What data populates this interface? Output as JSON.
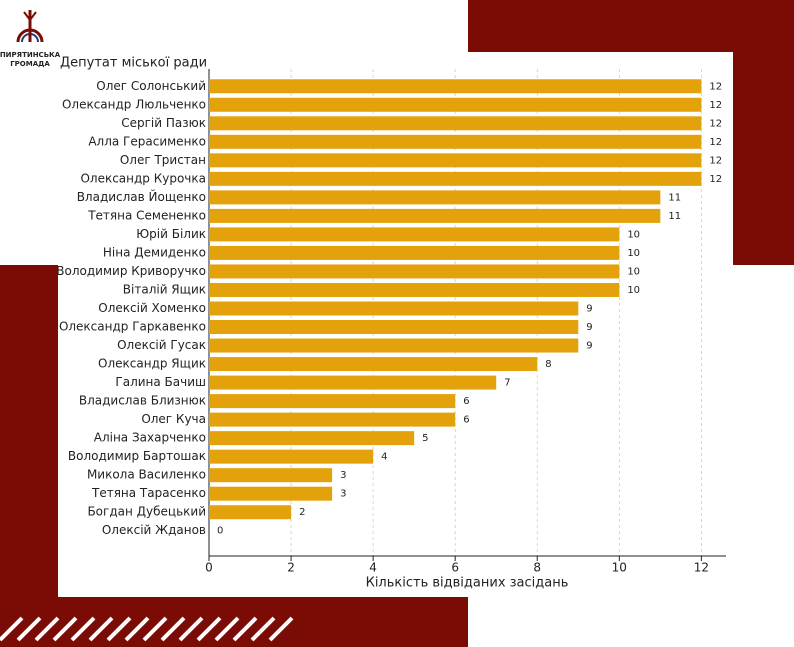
{
  "logo": {
    "lines": [
      "ПИРЯТИНСЬКА",
      "ГРОМАДА"
    ]
  },
  "chart_data": {
    "type": "barh",
    "ylabel": "Депутат міської ради",
    "xlabel": "Кількість відвіданих засідань",
    "categories": [
      "Олег Солонський",
      "Олександр Люльченко",
      "Сергій Пазюк",
      "Алла Герасименко",
      "Олег Тристан",
      "Олександр Курочка",
      "Владислав Йощенко",
      "Тетяна Семененко",
      "Юрій Білик",
      "Ніна Демиденко",
      "Володимир Криворучко",
      "Віталій Ящик",
      "Олексій Хоменко",
      "Олександр Гаркавенко",
      "Олексій Гусак",
      "Олександр Ящик",
      "Галина Бачиш",
      "Владислав Близнюк",
      "Олег Куча",
      "Аліна Захарченко",
      "Володимир Бартошак",
      "Микола Василенко",
      "Тетяна Тарасенко",
      "Богдан Дубецький",
      "Олексій Жданов"
    ],
    "values": [
      12,
      12,
      12,
      12,
      12,
      12,
      11,
      11,
      10,
      10,
      10,
      10,
      9,
      9,
      9,
      8,
      7,
      6,
      6,
      5,
      4,
      3,
      3,
      2,
      0
    ],
    "color": "#e3a20b",
    "xlim": [
      0,
      12.6
    ],
    "xticks": [
      0,
      2,
      4,
      6,
      8,
      10,
      12
    ],
    "grid": true
  }
}
